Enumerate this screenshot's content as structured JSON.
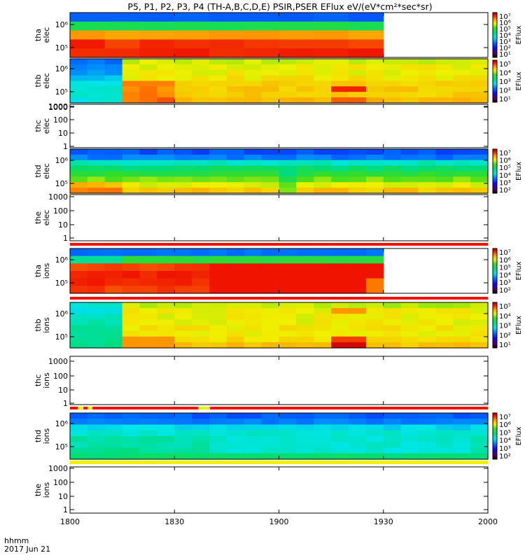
{
  "chart_data": {
    "type": "heatmap",
    "title": "P5, P1, P2, P3, P4 (TH-A,B,C,D,E) PSIR,PSER EFlux eV/(eV*cm²*sec*sr)",
    "x_axis": {
      "ticks": [
        1800,
        1830,
        1900,
        1930,
        2000
      ],
      "tick_labels": [
        "1800",
        "1830",
        "1900",
        "1930",
        "2000"
      ],
      "range_minutes": [
        0,
        120
      ],
      "corner_label_1": "hhmm",
      "corner_label_2": "2017 Jun 21"
    },
    "colorbar_label": "EFlux",
    "panels": [
      {
        "id": "tha-elec",
        "label1": "tha",
        "label2": "elec",
        "y_ticks": [
          "10⁶",
          "10⁵"
        ],
        "rows": 5,
        "cols": 12,
        "grid": [
          [
            3,
            3,
            3,
            3,
            3,
            3,
            3,
            3,
            3,
            3,
            3,
            3
          ],
          [
            6,
            6,
            6,
            6,
            6,
            6,
            6,
            6,
            6,
            6,
            6,
            6
          ],
          [
            8.5,
            8.5,
            8.5,
            8.5,
            8.5,
            8.5,
            8.5,
            8.5,
            8.5,
            8.5,
            8.5,
            8.5
          ],
          [
            9.4,
            9.2,
            9.3,
            9.3,
            9.3,
            9.2,
            9.3,
            9.2,
            9.2,
            9.3,
            9.3,
            9.3
          ],
          [
            9.4,
            9.4,
            9.4,
            9.4,
            9.4,
            9.4,
            9.4,
            9.4,
            9.4,
            9.4,
            9.4,
            9.4
          ]
        ],
        "colorbar_ticks": [
          "10⁷",
          "10⁶",
          "10⁵",
          "10⁴",
          "10³",
          "10²",
          "10¹"
        ]
      },
      {
        "id": "thb-elec",
        "label1": "thb",
        "label2": "elec",
        "y_ticks": [
          "10⁶",
          "10⁵",
          "1000"
        ],
        "colorbar_ticks": [
          "10⁵",
          "10⁴",
          "10³",
          "10²",
          "10¹"
        ]
      },
      {
        "id": "thc-elec",
        "label1": "thc",
        "label2": "elec",
        "y_ticks": [
          "1000",
          "100",
          "10",
          "1"
        ]
      },
      {
        "id": "thd-elec",
        "label1": "thd",
        "label2": "elec",
        "y_ticks": [
          "10⁶",
          "10⁵"
        ],
        "colorbar_ticks": [
          "10⁷",
          "10⁶",
          "10⁵",
          "10⁴",
          "10³",
          "10²"
        ]
      },
      {
        "id": "the-elec",
        "label1": "the",
        "label2": "elec",
        "y_ticks": [
          "1000",
          "100",
          "10",
          "1"
        ]
      },
      {
        "id": "tha-ions",
        "label1": "tha",
        "label2": "ions",
        "y_ticks": [
          "10⁶",
          "10⁵"
        ],
        "colorbar_ticks": [
          "10⁷",
          "10⁶",
          "10⁵",
          "10⁴",
          "10³",
          "10²"
        ]
      },
      {
        "id": "thb-ions",
        "label1": "thb",
        "label2": "ions",
        "y_ticks": [
          "10⁶",
          "10⁵"
        ],
        "colorbar_ticks": [
          "10⁵",
          "10⁴",
          "10³",
          "10²",
          "10¹"
        ]
      },
      {
        "id": "thc-ions",
        "label1": "thc",
        "label2": "ions",
        "y_ticks": [
          "1000",
          "100",
          "10",
          "1"
        ]
      },
      {
        "id": "thd-ions",
        "label1": "thd",
        "label2": "ions",
        "y_ticks": [
          "10⁶",
          "10⁵"
        ],
        "colorbar_ticks": [
          "10⁷",
          "10⁶",
          "10⁵",
          "10⁴",
          "10³",
          "10²"
        ]
      },
      {
        "id": "the-ions",
        "label1": "the",
        "label2": "ions",
        "y_ticks": [
          "1000",
          "100",
          "10",
          "1"
        ]
      }
    ]
  }
}
